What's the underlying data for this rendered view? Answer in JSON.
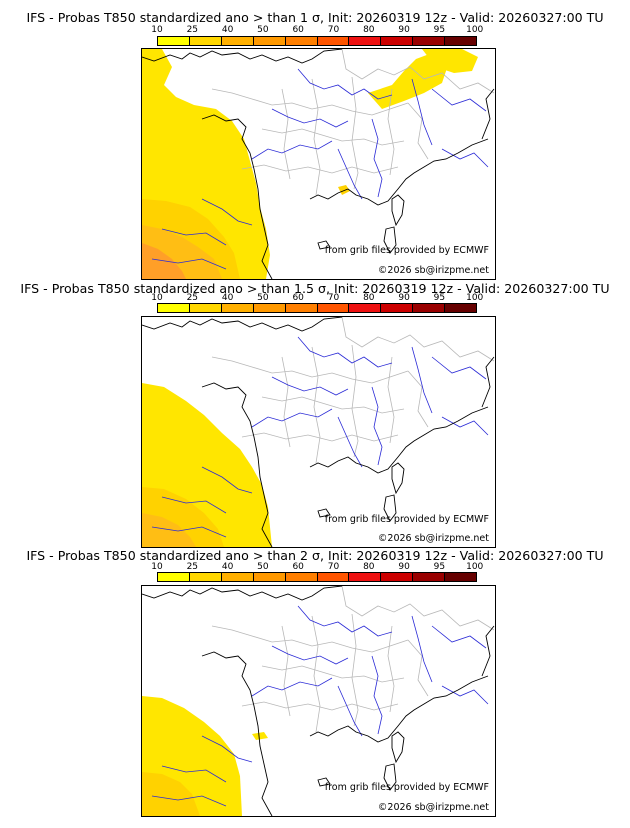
{
  "colorbar": {
    "ticks": [
      "10",
      "25",
      "40",
      "50",
      "60",
      "70",
      "80",
      "90",
      "95",
      "100"
    ],
    "colors": [
      "#ffff00",
      "#ffd700",
      "#ffb000",
      "#ff9900",
      "#ff7f00",
      "#ff5500",
      "#ee1111",
      "#cc0000",
      "#990000",
      "#660000"
    ]
  },
  "panels": [
    {
      "title": "IFS - Probas T850  standardized ano > than 1 σ, Init: 20260319 12z - Valid: 20260327:00 TU",
      "credit_source": "from grib files provided by ECMWF",
      "credit_copyright": "©2026 sb@irizpme.net"
    },
    {
      "title": "IFS - Probas T850  standardized ano > than 1.5 σ, Init: 20260319 12z - Valid: 20260327:00 TU",
      "credit_source": "from grib files provided by ECMWF",
      "credit_copyright": "©2026 sb@irizpme.net"
    },
    {
      "title": "IFS - Probas T850  standardized ano > than 2 σ, Init: 20260319 12z - Valid: 20260327:00 TU",
      "credit_source": "from grib files provided by ECMWF",
      "credit_copyright": "©2026 sb@irizpme.net"
    }
  ]
}
